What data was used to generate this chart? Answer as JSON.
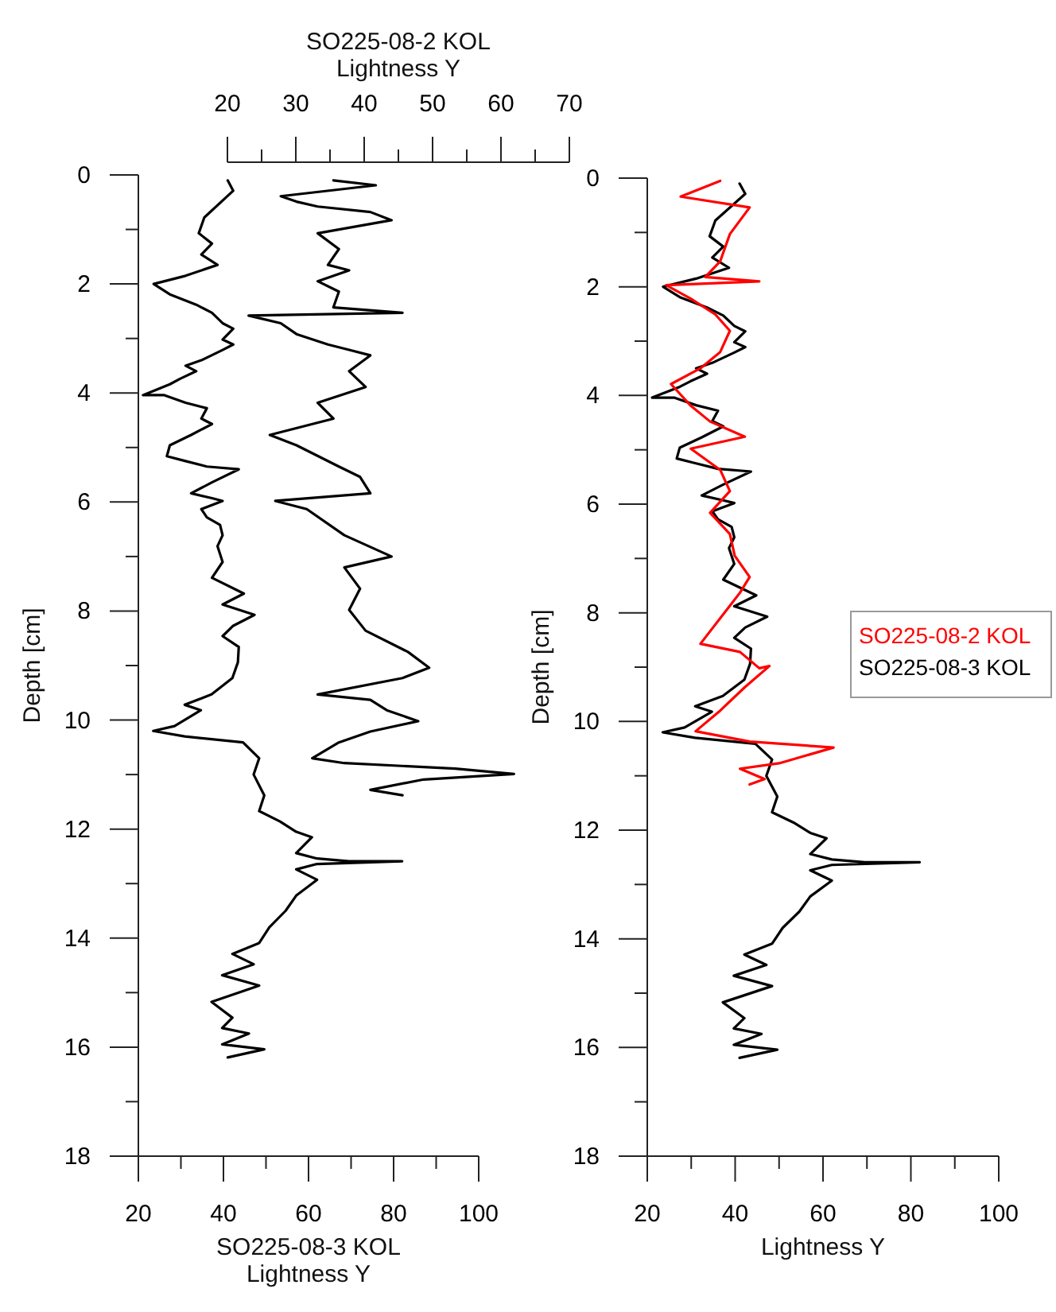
{
  "chart_data": [
    {
      "type": "line",
      "xlabel": "SO225-08-3 KOL\nLightness Y",
      "x2label": "SO225-08-2 KOL\nLightness Y",
      "ylabel": "Depth [cm]",
      "xlim": [
        20,
        100
      ],
      "xticks": [
        20,
        {
          "value": 30,
          "label": null
        },
        40,
        {
          "value": 50,
          "label": null
        },
        60,
        {
          "value": 70,
          "label": null
        },
        80,
        {
          "value": 90,
          "label": null
        },
        100
      ],
      "x2lim": [
        20,
        70
      ],
      "x2ticks": [
        20,
        {
          "value": 25,
          "label": null
        },
        30,
        {
          "value": 35,
          "label": null
        },
        40,
        {
          "value": 45,
          "label": null
        },
        50,
        {
          "value": 55,
          "label": null
        },
        60,
        {
          "value": 65,
          "label": null
        },
        70
      ],
      "ylim": [
        18,
        0
      ],
      "yticks": [
        0,
        {
          "value": 1,
          "label": null
        },
        2,
        {
          "value": 3,
          "label": null
        },
        4,
        {
          "value": 5,
          "label": null
        },
        6,
        {
          "value": 7,
          "label": null
        },
        8,
        {
          "value": 9,
          "label": null
        },
        10,
        {
          "value": 11,
          "label": null
        },
        12,
        {
          "value": 13,
          "label": null
        },
        14,
        {
          "value": 15,
          "label": null
        },
        16,
        {
          "value": 17,
          "label": null
        },
        18
      ],
      "series": [
        {
          "color": "#000000",
          "x": [
            41,
            42.3,
            35.5,
            34.2,
            37.3,
            34.8,
            38.6,
            31.1,
            23.6,
            27.4,
            33.6,
            37.3,
            39.8,
            42.3,
            39.8,
            42.3,
            39.8,
            34.8,
            31.1,
            33.6,
            29.8,
            27.4,
            21.1,
            26.1,
            31.1,
            36.1,
            34.8,
            37.3,
            32.4,
            27.4,
            26.7,
            31.1,
            36.1,
            43.6,
            37.3,
            32.4,
            37.3,
            39.8,
            34.8,
            36.1,
            39.2,
            39.8,
            38.6,
            39.8,
            37.3,
            44.8,
            39.8,
            47.3,
            42.3,
            39.8,
            43.6,
            43.4,
            42.1,
            37.2,
            30.9,
            34.7,
            28.5,
            23.5,
            30.9,
            44.6,
            48.4,
            47.1,
            49.6,
            48.4,
            53.3,
            57.1,
            60.8,
            57.1,
            62,
            69.5,
            82,
            62,
            57.1,
            62,
            57.1,
            54.6,
            50.8,
            48.4,
            42.1,
            47.1,
            39.7,
            48.4,
            37.2,
            42.1,
            39.7,
            46,
            39.7,
            49.6,
            41
          ],
          "values": [
            0.1,
            0.29,
            0.78,
            1.07,
            1.26,
            1.46,
            1.65,
            1.85,
            2.0,
            2.19,
            2.38,
            2.53,
            2.72,
            2.82,
            3.02,
            3.11,
            3.21,
            3.4,
            3.5,
            3.6,
            3.74,
            3.84,
            4.04,
            4.04,
            4.18,
            4.28,
            4.47,
            4.57,
            4.77,
            4.96,
            5.16,
            5.25,
            5.35,
            5.4,
            5.64,
            5.84,
            5.93,
            5.98,
            6.13,
            6.28,
            6.42,
            6.61,
            6.81,
            7.1,
            7.39,
            7.68,
            7.88,
            8.07,
            8.27,
            8.46,
            8.66,
            8.94,
            9.23,
            9.53,
            9.72,
            9.82,
            10.11,
            10.2,
            10.3,
            10.41,
            10.7,
            11.0,
            11.38,
            11.67,
            11.86,
            12.05,
            12.15,
            12.44,
            12.54,
            12.59,
            12.59,
            12.64,
            12.74,
            12.93,
            13.22,
            13.5,
            13.8,
            14.09,
            14.29,
            14.48,
            14.68,
            14.87,
            15.17,
            15.46,
            15.65,
            15.75,
            15.95,
            16.04,
            16.19
          ]
        },
        {
          "color": "#000000",
          "axis": "x2",
          "x": [
            35.5,
            41.7,
            27.8,
            30.1,
            33.2,
            40.9,
            44,
            33.2,
            36.3,
            34.7,
            37.8,
            33.2,
            36.3,
            35.5,
            45.6,
            23.1,
            27.8,
            30.1,
            34.7,
            37.8,
            40.9,
            37.8,
            40.2,
            33.2,
            35.5,
            26.2,
            30.1,
            36.3,
            39.4,
            40.9,
            27,
            31.6,
            37.1,
            44,
            37.1,
            39.4,
            37.8,
            40.2,
            46.4,
            49.5,
            45.6,
            33.2,
            40.9,
            43.3,
            47.9,
            40.9,
            36.3,
            32.4,
            37.1,
            53.3,
            61.9,
            48.7,
            40.9,
            45.6
          ],
          "values": [
            0.1,
            0.19,
            0.39,
            0.49,
            0.58,
            0.68,
            0.83,
            1.07,
            1.36,
            1.65,
            1.75,
            1.95,
            2.14,
            2.43,
            2.53,
            2.58,
            2.72,
            2.92,
            3.11,
            3.21,
            3.31,
            3.6,
            3.89,
            4.18,
            4.47,
            4.77,
            4.96,
            5.35,
            5.54,
            5.84,
            5.98,
            6.13,
            6.61,
            7.0,
            7.2,
            7.59,
            7.98,
            8.36,
            8.75,
            9.04,
            9.23,
            9.53,
            9.63,
            9.82,
            10.02,
            10.21,
            10.41,
            10.7,
            10.79,
            10.89,
            10.99,
            11.09,
            11.28,
            11.38
          ]
        }
      ]
    },
    {
      "type": "line",
      "xlabel": "Lightness Y",
      "ylabel": "Depth [cm]",
      "legend": "right",
      "xlim": [
        20,
        100
      ],
      "xticks": [
        20,
        {
          "value": 30,
          "label": null
        },
        40,
        {
          "value": 50,
          "label": null
        },
        60,
        {
          "value": 70,
          "label": null
        },
        80,
        {
          "value": 90,
          "label": null
        },
        100
      ],
      "ylim": [
        18,
        0
      ],
      "yticks": [
        0,
        {
          "value": 1,
          "label": null
        },
        2,
        {
          "value": 3,
          "label": null
        },
        4,
        {
          "value": 5,
          "label": null
        },
        6,
        {
          "value": 7,
          "label": null
        },
        8,
        {
          "value": 9,
          "label": null
        },
        10,
        {
          "value": 11,
          "label": null
        },
        12,
        {
          "value": 13,
          "label": null
        },
        14,
        {
          "value": 15,
          "label": null
        },
        16,
        {
          "value": 17,
          "label": null
        },
        18
      ],
      "series": [
        {
          "name": "SO225-08-3 KOL",
          "color": "#000000",
          "x": [
            41,
            42.3,
            35.5,
            34.2,
            37.3,
            34.8,
            38.6,
            31.1,
            23.6,
            27.4,
            33.6,
            37.3,
            39.8,
            42.3,
            39.8,
            42.3,
            39.8,
            34.8,
            31.1,
            33.6,
            29.8,
            27.4,
            21.1,
            26.1,
            31.1,
            36.1,
            34.8,
            37.3,
            32.4,
            27.4,
            26.7,
            31.1,
            36.1,
            43.6,
            37.3,
            32.4,
            37.3,
            39.8,
            34.8,
            36.1,
            39.2,
            39.8,
            38.6,
            39.8,
            37.3,
            44.8,
            39.8,
            47.3,
            42.3,
            39.8,
            43.6,
            43.4,
            42.1,
            37.2,
            30.9,
            34.7,
            28.5,
            23.5,
            30.9,
            44.6,
            48.4,
            47.1,
            49.6,
            48.4,
            53.3,
            57.1,
            60.8,
            57.1,
            62,
            69.5,
            82,
            62,
            57.1,
            62,
            57.1,
            54.6,
            50.8,
            48.4,
            42.1,
            47.1,
            39.7,
            48.4,
            37.2,
            42.1,
            39.7,
            46,
            39.7,
            49.6,
            41
          ],
          "values": [
            0.1,
            0.29,
            0.78,
            1.07,
            1.26,
            1.46,
            1.65,
            1.85,
            2.0,
            2.19,
            2.38,
            2.53,
            2.72,
            2.82,
            3.02,
            3.11,
            3.21,
            3.4,
            3.5,
            3.6,
            3.74,
            3.84,
            4.04,
            4.04,
            4.18,
            4.28,
            4.47,
            4.57,
            4.77,
            4.96,
            5.16,
            5.25,
            5.35,
            5.4,
            5.64,
            5.84,
            5.93,
            5.98,
            6.13,
            6.28,
            6.42,
            6.61,
            6.81,
            7.1,
            7.39,
            7.68,
            7.88,
            8.07,
            8.27,
            8.46,
            8.66,
            8.94,
            9.23,
            9.53,
            9.72,
            9.82,
            10.11,
            10.2,
            10.3,
            10.41,
            10.7,
            11.0,
            11.38,
            11.67,
            11.86,
            12.05,
            12.15,
            12.44,
            12.54,
            12.59,
            12.59,
            12.64,
            12.74,
            12.93,
            13.22,
            13.5,
            13.8,
            14.09,
            14.29,
            14.48,
            14.68,
            14.87,
            15.17,
            15.46,
            15.65,
            15.75,
            15.95,
            16.04,
            16.19
          ]
        },
        {
          "name": "SO225-08-2 KOL",
          "color": "#ff0000",
          "x": [
            36.6,
            27.6,
            43.3,
            38.8,
            36.6,
            33.2,
            45.5,
            24.3,
            29.9,
            35.5,
            38.8,
            36.6,
            32.1,
            25.4,
            29.9,
            34.3,
            42.2,
            29.9,
            36.6,
            38.8,
            34.3,
            38.8,
            39.9,
            43.3,
            41.1,
            32.1,
            41.1,
            45.5,
            47.8,
            42.2,
            36.6,
            31,
            43.3,
            62.4,
            50,
            41.1,
            46.7,
            43.3
          ],
          "values": [
            0.05,
            0.34,
            0.54,
            1.03,
            1.53,
            1.82,
            1.9,
            1.97,
            2.22,
            2.51,
            2.81,
            3.2,
            3.5,
            3.79,
            4.19,
            4.48,
            4.76,
            4.98,
            5.37,
            5.76,
            6.16,
            6.55,
            6.95,
            7.34,
            7.63,
            8.57,
            8.72,
            9.02,
            8.98,
            9.37,
            9.8,
            10.18,
            10.37,
            10.48,
            10.77,
            10.87,
            11.06,
            11.16
          ]
        }
      ]
    }
  ]
}
